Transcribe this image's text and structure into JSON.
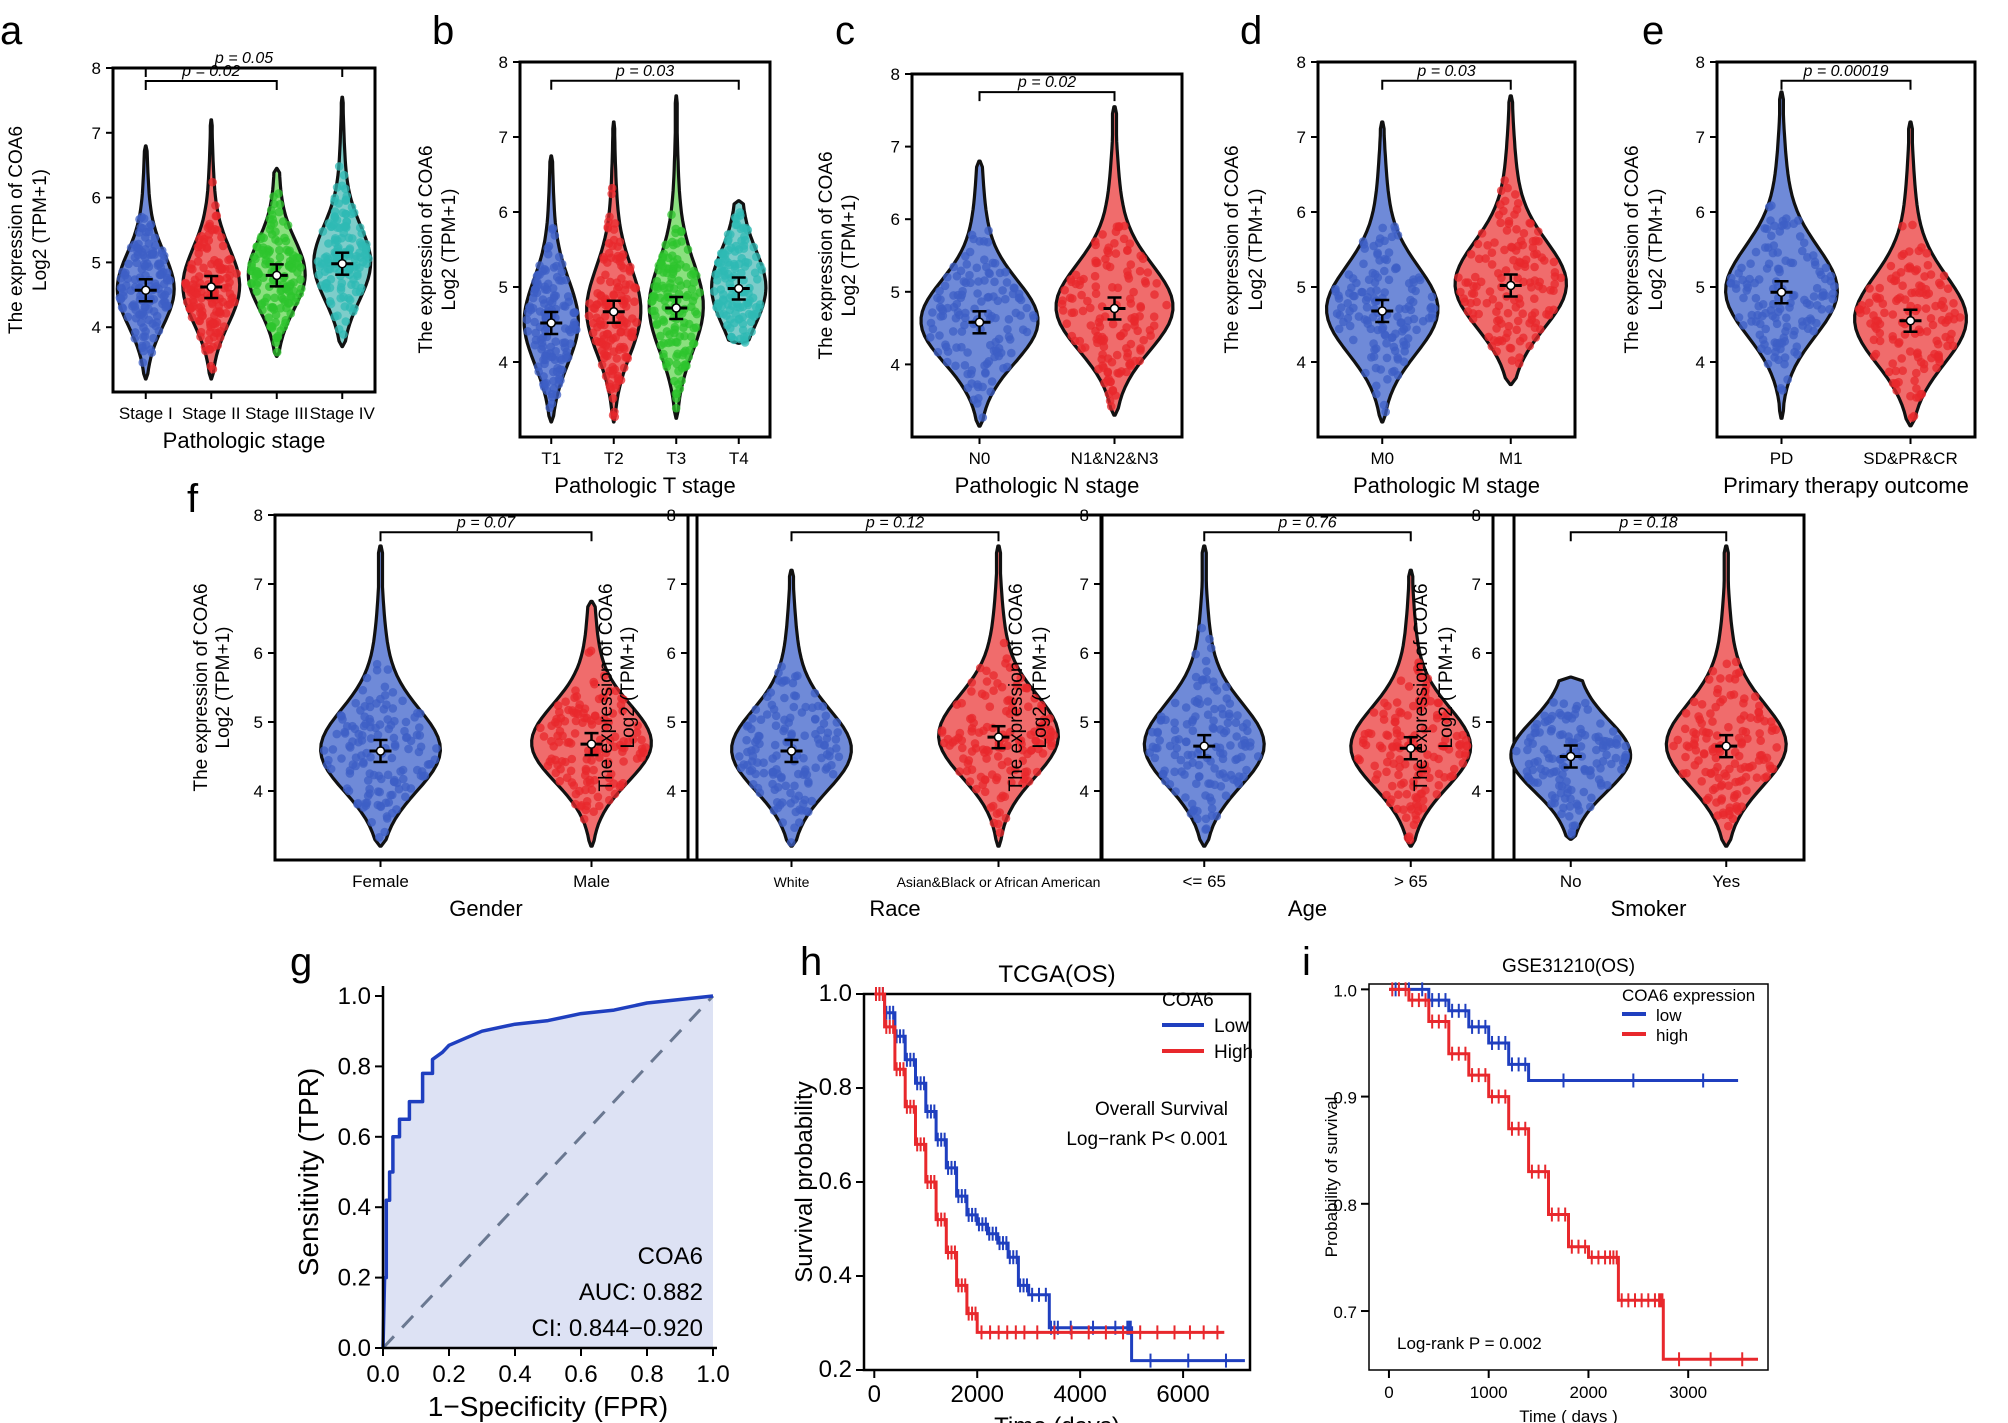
{
  "chart_data": {
    "violins": [
      {
        "id": "a",
        "letter": "a",
        "type": "violin",
        "ylabel": [
          "The expression of COA6",
          "Log2 (TPM+1)"
        ],
        "xlabel": "Pathologic stage",
        "ylim": [
          3,
          8
        ],
        "yticks": [
          4,
          5,
          6,
          7,
          8
        ],
        "groups": [
          {
            "label": "Stage I",
            "color": "#3e5fc6",
            "fill": "#6f8ad8",
            "median": 4.57,
            "min": 3.2,
            "max": 6.8
          },
          {
            "label": "Stage II",
            "color": "#e8282c",
            "fill": "#f06c6c",
            "median": 4.62,
            "min": 3.2,
            "max": 7.2
          },
          {
            "label": "Stage III",
            "color": "#2ec42e",
            "fill": "#8be07f",
            "median": 4.8,
            "min": 3.55,
            "max": 6.45
          },
          {
            "label": "Stage IV",
            "color": "#2fb9b4",
            "fill": "#7dcdca",
            "median": 4.98,
            "min": 3.7,
            "max": 7.55
          }
        ],
        "pvalues": [
          {
            "text": "p = 0.05",
            "from": 0,
            "to": 3,
            "y": 8.0
          },
          {
            "text": "p = 0.02",
            "from": 0,
            "to": 2,
            "y": 7.8
          }
        ]
      },
      {
        "id": "b",
        "letter": "b",
        "type": "violin",
        "ylabel": [
          "The expression of COA6",
          "Log2 (TPM+1)"
        ],
        "xlabel": "Pathologic T stage",
        "ylim": [
          3,
          8
        ],
        "yticks": [
          4,
          5,
          6,
          7,
          8
        ],
        "groups": [
          {
            "label": "T1",
            "color": "#3e5fc6",
            "fill": "#6f8ad8",
            "median": 4.52,
            "min": 3.2,
            "max": 6.75
          },
          {
            "label": "T2",
            "color": "#e8282c",
            "fill": "#f06c6c",
            "median": 4.67,
            "min": 3.2,
            "max": 7.2
          },
          {
            "label": "T3",
            "color": "#2ec42e",
            "fill": "#8be07f",
            "median": 4.72,
            "min": 3.25,
            "max": 7.55
          },
          {
            "label": "T4",
            "color": "#2fb9b4",
            "fill": "#7dcdca",
            "median": 4.98,
            "min": 4.25,
            "max": 6.15
          }
        ],
        "pvalues": [
          {
            "text": "p = 0.03",
            "from": 0,
            "to": 3,
            "y": 7.75
          }
        ]
      },
      {
        "id": "c",
        "letter": "c",
        "type": "violin",
        "ylabel": [
          "The expression of COA6",
          "Log2 (TPM+1)"
        ],
        "xlabel": "Pathologic N stage",
        "ylim": [
          3,
          8
        ],
        "yticks": [
          4,
          5,
          6,
          7,
          8
        ],
        "groups": [
          {
            "label": "N0",
            "color": "#3e5fc6",
            "fill": "#6f8ad8",
            "median": 4.58,
            "min": 3.15,
            "max": 6.8
          },
          {
            "label": "N1&N2&N3",
            "color": "#e8282c",
            "fill": "#f06c6c",
            "median": 4.77,
            "min": 3.3,
            "max": 7.55
          }
        ],
        "pvalues": [
          {
            "text": "p = 0.02",
            "from": 0,
            "to": 1,
            "y": 7.75
          }
        ]
      },
      {
        "id": "d",
        "letter": "d",
        "type": "violin",
        "ylabel": [
          "The expression of COA6",
          "Log2 (TPM+1)"
        ],
        "xlabel": "Pathologic M stage",
        "ylim": [
          3,
          8
        ],
        "yticks": [
          4,
          5,
          6,
          7,
          8
        ],
        "groups": [
          {
            "label": "M0",
            "color": "#3e5fc6",
            "fill": "#6f8ad8",
            "median": 4.68,
            "min": 3.2,
            "max": 7.2
          },
          {
            "label": "M1",
            "color": "#e8282c",
            "fill": "#f06c6c",
            "median": 5.02,
            "min": 3.7,
            "max": 7.55
          }
        ],
        "pvalues": [
          {
            "text": "p = 0.03",
            "from": 0,
            "to": 1,
            "y": 7.75
          }
        ]
      },
      {
        "id": "e",
        "letter": "e",
        "type": "violin",
        "ylabel": [
          "The expression of COA6",
          "Log2 (TPM+1)"
        ],
        "xlabel": "Primary therapy outcome",
        "ylim": [
          3,
          8
        ],
        "yticks": [
          4,
          5,
          6,
          7,
          8
        ],
        "groups": [
          {
            "label": "PD",
            "color": "#3e5fc6",
            "fill": "#6f8ad8",
            "median": 4.93,
            "min": 3.25,
            "max": 7.6
          },
          {
            "label": "SD&PR&CR",
            "color": "#e8282c",
            "fill": "#f06c6c",
            "median": 4.55,
            "min": 3.15,
            "max": 7.2
          }
        ],
        "pvalues": [
          {
            "text": "p = 0.00019",
            "from": 0,
            "to": 1,
            "y": 7.75
          }
        ]
      },
      {
        "id": "f1",
        "letter": "f",
        "type": "violin",
        "ylabel": [
          "The expression of COA6",
          "Log2 (TPM+1)"
        ],
        "xlabel": "Gender",
        "ylim": [
          3,
          8
        ],
        "yticks": [
          4,
          5,
          6,
          7,
          8
        ],
        "groups": [
          {
            "label": "Female",
            "color": "#3e5fc6",
            "fill": "#6f8ad8",
            "median": 4.58,
            "min": 3.2,
            "max": 7.55
          },
          {
            "label": "Male",
            "color": "#e8282c",
            "fill": "#f06c6c",
            "median": 4.68,
            "min": 3.2,
            "max": 6.75
          }
        ],
        "pvalues": [
          {
            "text": "p = 0.07",
            "from": 0,
            "to": 1,
            "y": 7.75
          }
        ]
      },
      {
        "id": "f2",
        "letter": "",
        "type": "violin",
        "ylabel": [
          "The expression of COA6",
          "Log2 (TPM+1)"
        ],
        "xlabel": "Race",
        "ylim": [
          3,
          8
        ],
        "yticks": [
          4,
          5,
          6,
          7,
          8
        ],
        "groups": [
          {
            "label": "White",
            "color": "#3e5fc6",
            "fill": "#6f8ad8",
            "median": 4.58,
            "min": 3.2,
            "max": 7.2
          },
          {
            "label": "Asian&Black or African American",
            "color": "#e8282c",
            "fill": "#f06c6c",
            "median": 4.78,
            "min": 3.2,
            "max": 7.55
          }
        ],
        "pvalues": [
          {
            "text": "p = 0.12",
            "from": 0,
            "to": 1,
            "y": 7.75
          }
        ]
      },
      {
        "id": "f3",
        "letter": "",
        "type": "violin",
        "ylabel": [
          "The expression of COA6",
          "Log2 (TPM+1)"
        ],
        "xlabel": "Age",
        "ylim": [
          3,
          8
        ],
        "yticks": [
          4,
          5,
          6,
          7,
          8
        ],
        "groups": [
          {
            "label": "<= 65",
            "color": "#3e5fc6",
            "fill": "#6f8ad8",
            "median": 4.65,
            "min": 3.2,
            "max": 7.55
          },
          {
            "label": "> 65",
            "color": "#e8282c",
            "fill": "#f06c6c",
            "median": 4.62,
            "min": 3.2,
            "max": 7.2
          }
        ],
        "pvalues": [
          {
            "text": "p = 0.76",
            "from": 0,
            "to": 1,
            "y": 7.75
          }
        ]
      },
      {
        "id": "f4",
        "letter": "",
        "type": "violin",
        "ylabel": [
          "The expression of COA6",
          "Log2 (TPM+1)"
        ],
        "xlabel": "Smoker",
        "ylim": [
          3,
          8
        ],
        "yticks": [
          4,
          5,
          6,
          7,
          8
        ],
        "groups": [
          {
            "label": "No",
            "color": "#3e5fc6",
            "fill": "#6f8ad8",
            "median": 4.5,
            "min": 3.3,
            "max": 5.65
          },
          {
            "label": "Yes",
            "color": "#e8282c",
            "fill": "#f06c6c",
            "median": 4.65,
            "min": 3.2,
            "max": 7.55
          }
        ],
        "pvalues": [
          {
            "text": "p = 0.18",
            "from": 0,
            "to": 1,
            "y": 7.75
          }
        ]
      }
    ],
    "roc": {
      "letter": "g",
      "type": "line",
      "xlabel": "1−Specificity (FPR)",
      "ylabel": "Sensitivity (TPR)",
      "xlim": [
        0,
        1
      ],
      "ylim": [
        0,
        1
      ],
      "ticks": [
        "0.0",
        "0.2",
        "0.4",
        "0.6",
        "0.8",
        "1.0"
      ],
      "x": [
        0,
        0.005,
        0.01,
        0.01,
        0.02,
        0.02,
        0.03,
        0.03,
        0.05,
        0.05,
        0.08,
        0.08,
        0.12,
        0.12,
        0.15,
        0.15,
        0.18,
        0.2,
        0.25,
        0.3,
        0.4,
        0.5,
        0.6,
        0.7,
        0.8,
        0.9,
        1.0
      ],
      "y": [
        0,
        0.2,
        0.2,
        0.42,
        0.42,
        0.5,
        0.5,
        0.6,
        0.6,
        0.65,
        0.65,
        0.7,
        0.7,
        0.78,
        0.78,
        0.82,
        0.84,
        0.86,
        0.88,
        0.9,
        0.92,
        0.93,
        0.95,
        0.96,
        0.98,
        0.99,
        1.0
      ],
      "annotations": [
        "COA6",
        "AUC: 0.882",
        "CI: 0.844−0.920"
      ],
      "color": "#1f3fbf",
      "fill": "#dde2f4"
    },
    "km_tcga": {
      "letter": "h",
      "type": "line",
      "title": "TCGA(OS)",
      "xlabel": "Time (days)",
      "ylabel": "Survival probability",
      "xlim": [
        -200,
        7300
      ],
      "ylim": [
        0.2,
        1.0
      ],
      "xticks": [
        0,
        2000,
        4000,
        6000
      ],
      "yticks": [
        "0.2",
        "0.4",
        "0.6",
        "0.8",
        "1.0"
      ],
      "legend_title": "COA6",
      "annotations": [
        "Overall Survival",
        "Log−rank P< 0.001"
      ],
      "series": [
        {
          "name": "Low",
          "color": "#1f3fbf",
          "x": [
            0,
            200,
            400,
            600,
            800,
            1000,
            1200,
            1400,
            1600,
            1800,
            2000,
            2200,
            2400,
            2600,
            2800,
            3000,
            3400,
            3600,
            4900,
            5000,
            7200
          ],
          "y": [
            1.0,
            0.96,
            0.91,
            0.86,
            0.81,
            0.75,
            0.69,
            0.63,
            0.57,
            0.53,
            0.51,
            0.49,
            0.47,
            0.44,
            0.38,
            0.36,
            0.29,
            0.29,
            0.29,
            0.22,
            0.22
          ]
        },
        {
          "name": "High",
          "color": "#e8282c",
          "x": [
            0,
            200,
            400,
            600,
            800,
            1000,
            1200,
            1400,
            1600,
            1800,
            2000,
            2500,
            3000,
            4000,
            5000,
            6000,
            6800
          ],
          "y": [
            1.0,
            0.93,
            0.84,
            0.76,
            0.68,
            0.6,
            0.52,
            0.45,
            0.38,
            0.32,
            0.28,
            0.28,
            0.28,
            0.28,
            0.28,
            0.28,
            0.28
          ]
        }
      ]
    },
    "km_geo": {
      "letter": "i",
      "type": "line",
      "title": "GSE31210(OS)",
      "xlabel": "Time ( days )",
      "ylabel": "Probability of survival",
      "xlim": [
        -200,
        3800
      ],
      "ylim": [
        0.645,
        1.005
      ],
      "xticks": [
        0,
        1000,
        2000,
        3000
      ],
      "yticks": [
        "0.7",
        "0.8",
        "0.9",
        "1.0"
      ],
      "legend_title": "COA6 expression",
      "annotations": [
        "Log-rank P = 0.002"
      ],
      "series": [
        {
          "name": "low",
          "color": "#1f3fbf",
          "x": [
            0,
            400,
            600,
            800,
            1000,
            1200,
            1400,
            3500
          ],
          "y": [
            1.0,
            0.99,
            0.98,
            0.965,
            0.95,
            0.93,
            0.915,
            0.915
          ]
        },
        {
          "name": "high",
          "color": "#e8282c",
          "x": [
            0,
            200,
            400,
            600,
            800,
            1000,
            1200,
            1400,
            1600,
            1800,
            2000,
            2200,
            2300,
            2500,
            2700,
            2750,
            3700
          ],
          "y": [
            1.0,
            0.99,
            0.97,
            0.94,
            0.92,
            0.9,
            0.87,
            0.83,
            0.79,
            0.76,
            0.75,
            0.75,
            0.71,
            0.71,
            0.71,
            0.655,
            0.655
          ]
        }
      ]
    }
  }
}
